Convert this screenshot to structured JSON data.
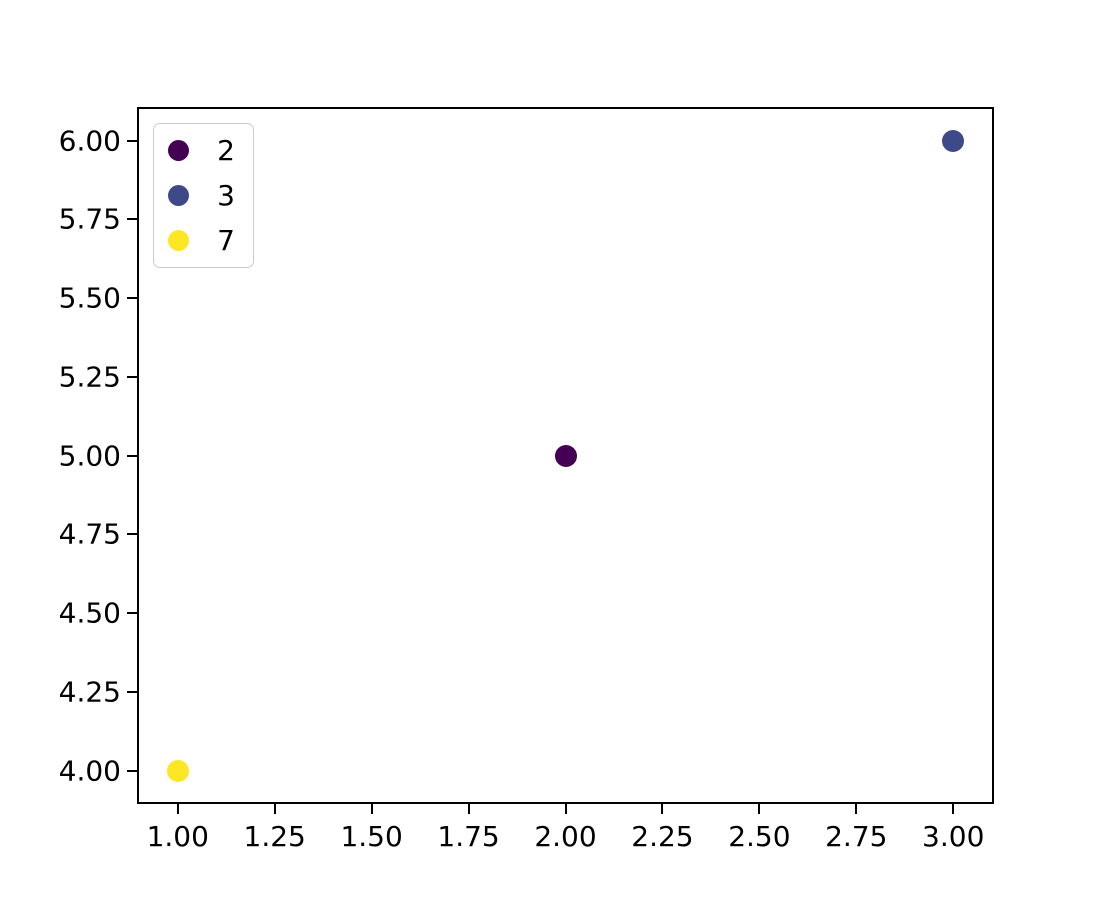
{
  "chart_data": {
    "type": "scatter",
    "title": "",
    "xlabel": "",
    "ylabel": "",
    "xlim": [
      0.9,
      3.1
    ],
    "ylim": [
      3.9,
      6.1
    ],
    "grid": false,
    "x_ticks": [
      {
        "value": 1.0,
        "label": "1.00"
      },
      {
        "value": 1.25,
        "label": "1.25"
      },
      {
        "value": 1.5,
        "label": "1.50"
      },
      {
        "value": 1.75,
        "label": "1.75"
      },
      {
        "value": 2.0,
        "label": "2.00"
      },
      {
        "value": 2.25,
        "label": "2.25"
      },
      {
        "value": 2.5,
        "label": "2.50"
      },
      {
        "value": 2.75,
        "label": "2.75"
      },
      {
        "value": 3.0,
        "label": "3.00"
      }
    ],
    "y_ticks": [
      {
        "value": 4.0,
        "label": "4.00"
      },
      {
        "value": 4.25,
        "label": "4.25"
      },
      {
        "value": 4.5,
        "label": "4.50"
      },
      {
        "value": 4.75,
        "label": "4.75"
      },
      {
        "value": 5.0,
        "label": "5.00"
      },
      {
        "value": 5.25,
        "label": "5.25"
      },
      {
        "value": 5.5,
        "label": "5.50"
      },
      {
        "value": 5.75,
        "label": "5.75"
      },
      {
        "value": 6.0,
        "label": "6.00"
      }
    ],
    "points": [
      {
        "x": 1.0,
        "y": 4.0,
        "value": 7,
        "color": "#fde725"
      },
      {
        "x": 2.0,
        "y": 5.0,
        "value": 2,
        "color": "#440154"
      },
      {
        "x": 3.0,
        "y": 6.0,
        "value": 3,
        "color": "#3e4989"
      }
    ],
    "legend": {
      "position": "upper-left",
      "entries": [
        {
          "label": "2",
          "color": "#440154"
        },
        {
          "label": "3",
          "color": "#3e4989"
        },
        {
          "label": "7",
          "color": "#fde725"
        }
      ]
    },
    "colors": {
      "spine": "#000000",
      "tick_text": "#000000",
      "legend_border": "#cccccc",
      "background": "#ffffff"
    }
  }
}
